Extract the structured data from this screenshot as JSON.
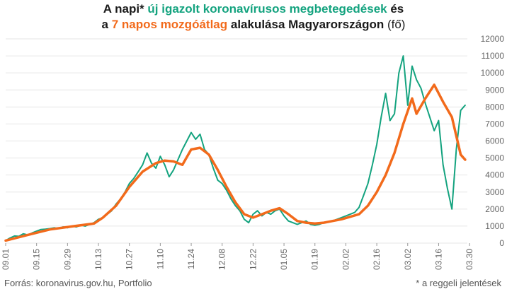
{
  "title": {
    "line1_a": "A napi* ",
    "line1_b": "új igazolt koronavírusos megbetegedések",
    "line1_c": " és",
    "line2_a": "a ",
    "line2_b": "7 napos mozgóátlag",
    "line2_c": " alakulása Magyarországon",
    "line2_d": " (fő)"
  },
  "footer": {
    "source": "Forrás: koronavirus.gov.hu, Portfolio",
    "note": "* a reggeli jelentések"
  },
  "colors": {
    "daily": "#14a37f",
    "average": "#f26a1b",
    "grid": "#e6e6e6",
    "axis_text": "#666666"
  },
  "chart_data": {
    "type": "line",
    "title": "A napi* új igazolt koronavírusos megbetegedések és a 7 napos mozgóátlag alakulása Magyarországon (fő)",
    "x_start": "09.01",
    "x_ticks": [
      "09.01",
      "09.15",
      "09.29",
      "10.13",
      "10.27",
      "11.10",
      "11.24",
      "12.08",
      "12.22",
      "01.05",
      "01.19",
      "02.02",
      "02.16",
      "03.02",
      "03.16",
      "03.30"
    ],
    "ylim": [
      0,
      12000
    ],
    "y_ticks": [
      0,
      1000,
      2000,
      3000,
      4000,
      5000,
      6000,
      7000,
      8000,
      9000,
      10000,
      11000,
      12000
    ],
    "y_axis_position": "right",
    "grid": true,
    "series": [
      {
        "name": "új igazolt koronavírusos megbetegedések",
        "color": "#14a37f",
        "points": [
          [
            0,
            150
          ],
          [
            2,
            300
          ],
          [
            4,
            420
          ],
          [
            6,
            400
          ],
          [
            8,
            550
          ],
          [
            10,
            480
          ],
          [
            12,
            600
          ],
          [
            14,
            700
          ],
          [
            16,
            800
          ],
          [
            18,
            820
          ],
          [
            20,
            850
          ],
          [
            22,
            900
          ],
          [
            24,
            850
          ],
          [
            26,
            950
          ],
          [
            28,
            900
          ],
          [
            30,
            1000
          ],
          [
            32,
            950
          ],
          [
            34,
            1050
          ],
          [
            36,
            1000
          ],
          [
            38,
            1100
          ],
          [
            40,
            1200
          ],
          [
            42,
            1400
          ],
          [
            44,
            1500
          ],
          [
            46,
            1700
          ],
          [
            48,
            1900
          ],
          [
            50,
            2300
          ],
          [
            52,
            2600
          ],
          [
            54,
            3000
          ],
          [
            56,
            3500
          ],
          [
            58,
            3800
          ],
          [
            60,
            4200
          ],
          [
            62,
            4600
          ],
          [
            64,
            5300
          ],
          [
            66,
            4700
          ],
          [
            68,
            4400
          ],
          [
            70,
            5100
          ],
          [
            72,
            4600
          ],
          [
            74,
            3900
          ],
          [
            76,
            4300
          ],
          [
            78,
            4900
          ],
          [
            80,
            5500
          ],
          [
            82,
            6000
          ],
          [
            84,
            6500
          ],
          [
            86,
            6100
          ],
          [
            88,
            6400
          ],
          [
            90,
            5500
          ],
          [
            92,
            5200
          ],
          [
            94,
            4400
          ],
          [
            96,
            3700
          ],
          [
            98,
            3500
          ],
          [
            100,
            3100
          ],
          [
            102,
            2600
          ],
          [
            104,
            2200
          ],
          [
            106,
            1900
          ],
          [
            108,
            1400
          ],
          [
            110,
            1200
          ],
          [
            112,
            1700
          ],
          [
            114,
            1900
          ],
          [
            116,
            1600
          ],
          [
            118,
            1800
          ],
          [
            120,
            1700
          ],
          [
            122,
            1900
          ],
          [
            124,
            2000
          ],
          [
            126,
            1600
          ],
          [
            128,
            1300
          ],
          [
            130,
            1200
          ],
          [
            132,
            1100
          ],
          [
            134,
            1200
          ],
          [
            136,
            1300
          ],
          [
            138,
            1100
          ],
          [
            140,
            1050
          ],
          [
            142,
            1100
          ],
          [
            144,
            1200
          ],
          [
            146,
            1250
          ],
          [
            148,
            1300
          ],
          [
            150,
            1400
          ],
          [
            152,
            1500
          ],
          [
            154,
            1600
          ],
          [
            156,
            1700
          ],
          [
            158,
            1800
          ],
          [
            160,
            2100
          ],
          [
            162,
            2800
          ],
          [
            164,
            3500
          ],
          [
            166,
            4600
          ],
          [
            168,
            5800
          ],
          [
            170,
            7400
          ],
          [
            172,
            8800
          ],
          [
            174,
            7200
          ],
          [
            176,
            7600
          ],
          [
            178,
            10000
          ],
          [
            180,
            11000
          ],
          [
            182,
            8100
          ],
          [
            184,
            10400
          ],
          [
            186,
            9600
          ],
          [
            188,
            9100
          ],
          [
            190,
            8200
          ],
          [
            192,
            7400
          ],
          [
            194,
            6600
          ],
          [
            196,
            7200
          ],
          [
            198,
            4600
          ],
          [
            200,
            3200
          ],
          [
            202,
            2000
          ],
          [
            204,
            5500
          ],
          [
            206,
            7800
          ],
          [
            208,
            8100
          ]
        ]
      },
      {
        "name": "7 napos mozgóátlag",
        "color": "#f26a1b",
        "points": [
          [
            0,
            150
          ],
          [
            10,
            480
          ],
          [
            20,
            800
          ],
          [
            30,
            980
          ],
          [
            40,
            1150
          ],
          [
            44,
            1500
          ],
          [
            50,
            2200
          ],
          [
            56,
            3300
          ],
          [
            62,
            4200
          ],
          [
            68,
            4700
          ],
          [
            72,
            4850
          ],
          [
            76,
            4800
          ],
          [
            80,
            4600
          ],
          [
            84,
            5500
          ],
          [
            88,
            5600
          ],
          [
            92,
            5200
          ],
          [
            96,
            4300
          ],
          [
            100,
            3300
          ],
          [
            104,
            2400
          ],
          [
            108,
            1700
          ],
          [
            112,
            1500
          ],
          [
            116,
            1700
          ],
          [
            120,
            1900
          ],
          [
            124,
            2050
          ],
          [
            128,
            1700
          ],
          [
            132,
            1300
          ],
          [
            136,
            1200
          ],
          [
            140,
            1150
          ],
          [
            144,
            1200
          ],
          [
            148,
            1300
          ],
          [
            152,
            1400
          ],
          [
            156,
            1550
          ],
          [
            160,
            1700
          ],
          [
            164,
            2200
          ],
          [
            168,
            3000
          ],
          [
            172,
            4000
          ],
          [
            176,
            5300
          ],
          [
            180,
            7000
          ],
          [
            184,
            8500
          ],
          [
            186,
            7600
          ],
          [
            190,
            8500
          ],
          [
            194,
            9300
          ],
          [
            198,
            8300
          ],
          [
            202,
            7400
          ],
          [
            206,
            5200
          ],
          [
            208,
            4900
          ]
        ]
      }
    ]
  }
}
